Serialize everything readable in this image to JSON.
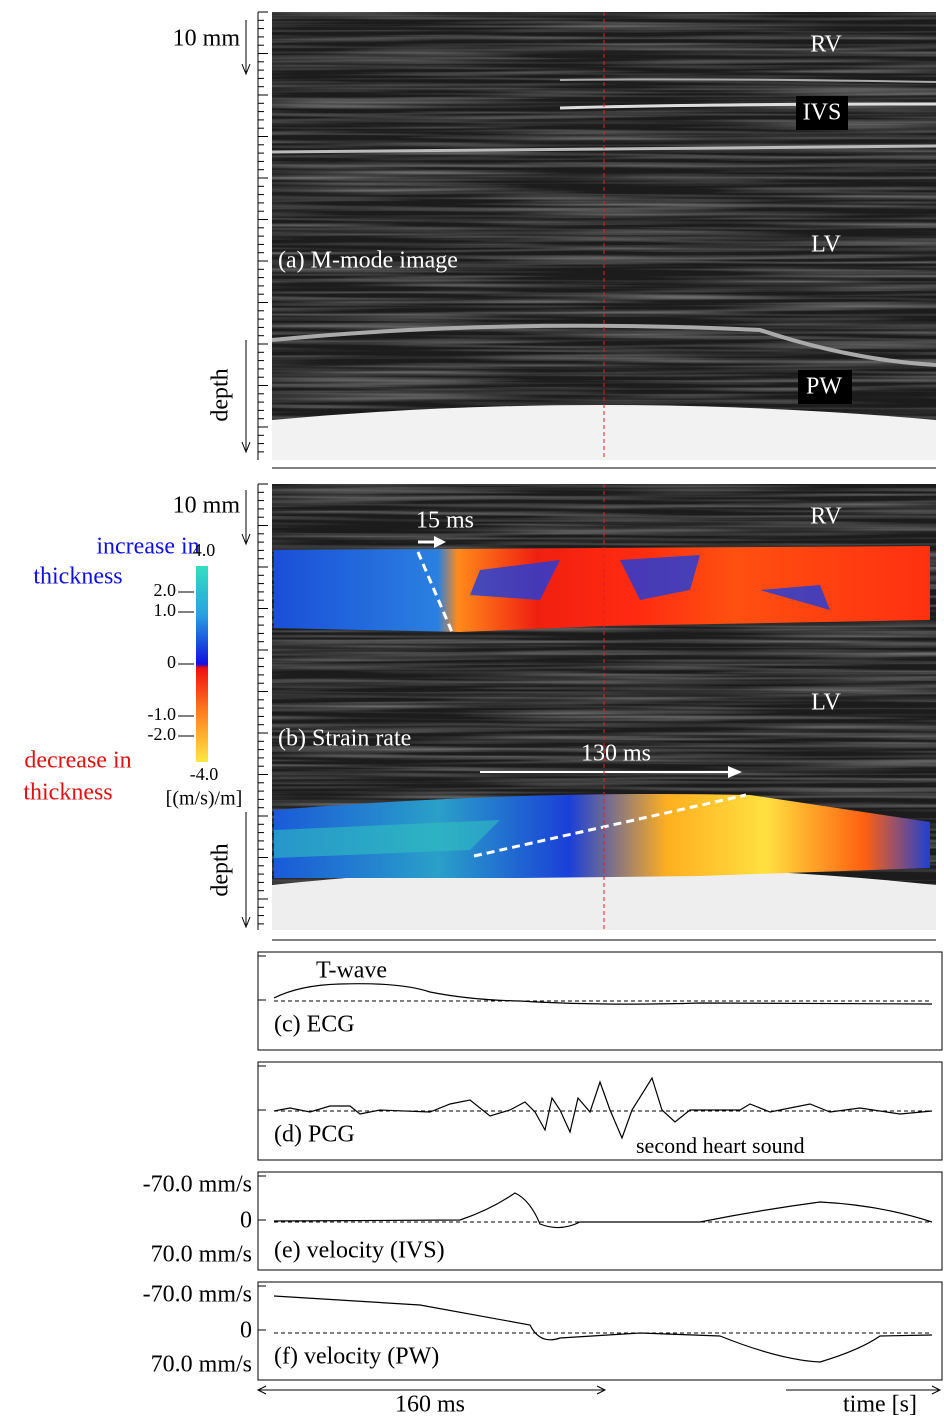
{
  "panels": {
    "a": {
      "label": "(a) M-mode image",
      "scale": "10 mm",
      "axis": "depth",
      "annotations": [
        "RV",
        "IVS",
        "LV",
        "PW"
      ]
    },
    "b": {
      "label": "(b) Strain rate",
      "scale": "10 mm",
      "axis": "depth",
      "annotations": [
        "RV",
        "LV",
        "15 ms",
        "130 ms"
      ]
    },
    "c": {
      "label": "(c) ECG",
      "annotations": [
        "T-wave"
      ]
    },
    "d": {
      "label": "(d) PCG",
      "annotations": [
        "second heart sound"
      ]
    },
    "e": {
      "label": "(e) velocity (IVS)",
      "ticks": [
        "-70.0 mm/s",
        "0",
        "70.0 mm/s"
      ]
    },
    "f": {
      "label": "(f) velocity (PW)",
      "ticks": [
        "-70.0 mm/s",
        "0",
        "70.0 mm/s"
      ]
    }
  },
  "colorbar": {
    "ticks": [
      "4.0",
      "2.0",
      "1.0",
      "0",
      "-1.0",
      "-2.0",
      "-4.0"
    ],
    "unit": "[(m/s)/m]",
    "increase": [
      "increase in",
      "thickness"
    ],
    "decrease": [
      "decrease in",
      "thickness"
    ]
  },
  "footer": {
    "duration": "160 ms",
    "time_axis": "time [s]"
  }
}
